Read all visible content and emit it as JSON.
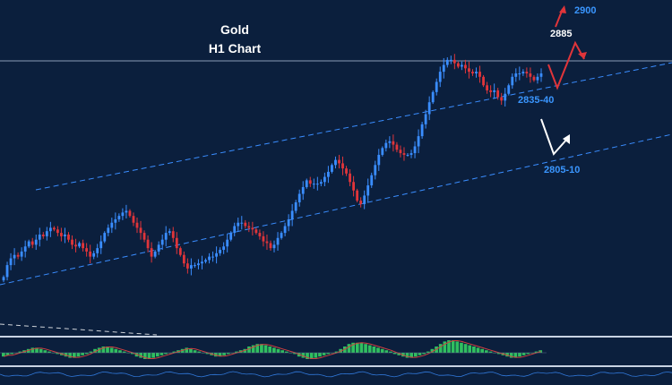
{
  "header": {
    "line1": "Gold",
    "line2": "H1  Chart"
  },
  "annotations": {
    "target_high": "2900",
    "target_mid": "2885",
    "support_1": "2835-40",
    "support_2": "2805-10"
  },
  "colors": {
    "background": "#0b1f3d",
    "bull_candle": "#3a8dff",
    "bear_candle": "#e0353a",
    "channel": "#3a8dff",
    "projection_up": "#e0353a",
    "projection_alt": "#ffffff",
    "oscillator_bars": "#2fbf5f",
    "signal_line": "#d04040",
    "hline": "#8a9bb5"
  },
  "chart_data": {
    "type": "candlestick",
    "instrument": "Gold",
    "timeframe": "H1",
    "xlim": [
      0,
      200
    ],
    "ylim": [
      2725,
      2915
    ],
    "close": [
      2757,
      2764,
      2768,
      2770,
      2769,
      2772,
      2775,
      2778,
      2776,
      2779,
      2782,
      2781,
      2784,
      2786,
      2785,
      2783,
      2781,
      2782,
      2779,
      2776,
      2775,
      2777,
      2774,
      2772,
      2769,
      2771,
      2774,
      2778,
      2783,
      2786,
      2789,
      2791,
      2793,
      2795,
      2796,
      2793,
      2789,
      2786,
      2783,
      2779,
      2774,
      2769,
      2772,
      2776,
      2779,
      2783,
      2784,
      2780,
      2774,
      2770,
      2765,
      2762,
      2764,
      2764,
      2765,
      2766,
      2767,
      2769,
      2769,
      2771,
      2773,
      2775,
      2779,
      2783,
      2787,
      2789,
      2789,
      2787,
      2786,
      2785,
      2783,
      2781,
      2778,
      2777,
      2774,
      2776,
      2780,
      2783,
      2787,
      2791,
      2796,
      2801,
      2806,
      2810,
      2814,
      2812,
      2812,
      2812,
      2813,
      2816,
      2819,
      2823,
      2826,
      2824,
      2821,
      2818,
      2813,
      2808,
      2802,
      2800,
      2805,
      2811,
      2817,
      2823,
      2829,
      2833,
      2836,
      2837,
      2835,
      2832,
      2830,
      2829,
      2829,
      2830,
      2834,
      2840,
      2847,
      2853,
      2860,
      2866,
      2872,
      2878,
      2882,
      2885,
      2885,
      2883,
      2881,
      2882,
      2880,
      2878,
      2877,
      2878,
      2875,
      2870,
      2867,
      2866,
      2867,
      2863,
      2861,
      2865,
      2870,
      2875,
      2877,
      2877,
      2878,
      2877,
      2875,
      2873,
      2875,
      2877
    ]
  },
  "oscillator": {
    "values": [
      -3,
      -2,
      -1,
      0,
      1,
      2,
      3,
      4,
      4,
      3,
      2,
      1,
      0,
      -1,
      -2,
      -3,
      -4,
      -4,
      -3,
      -2,
      -1,
      1,
      3,
      4,
      5,
      5,
      4,
      3,
      2,
      1,
      0,
      -1,
      -3,
      -4,
      -5,
      -5,
      -4,
      -3,
      -2,
      -1,
      0,
      1,
      2,
      3,
      4,
      3,
      2,
      1,
      0,
      -1,
      -2,
      -3,
      -3,
      -2,
      -1,
      0,
      1,
      2,
      3,
      5,
      6,
      7,
      7,
      6,
      5,
      4,
      3,
      2,
      1,
      0,
      -1,
      -3,
      -4,
      -5,
      -5,
      -4,
      -3,
      -2,
      -1,
      0,
      1,
      3,
      5,
      7,
      8,
      8,
      8,
      7,
      6,
      5,
      4,
      3,
      2,
      1,
      -1,
      -2,
      -3,
      -4,
      -4,
      -3,
      -2,
      -1,
      1,
      3,
      5,
      7,
      9,
      10,
      10,
      9,
      8,
      7,
      6,
      5,
      4,
      3,
      2,
      1,
      0,
      -1,
      -2,
      -3,
      -4,
      -4,
      -3,
      -2,
      -1,
      0,
      1,
      2
    ]
  }
}
